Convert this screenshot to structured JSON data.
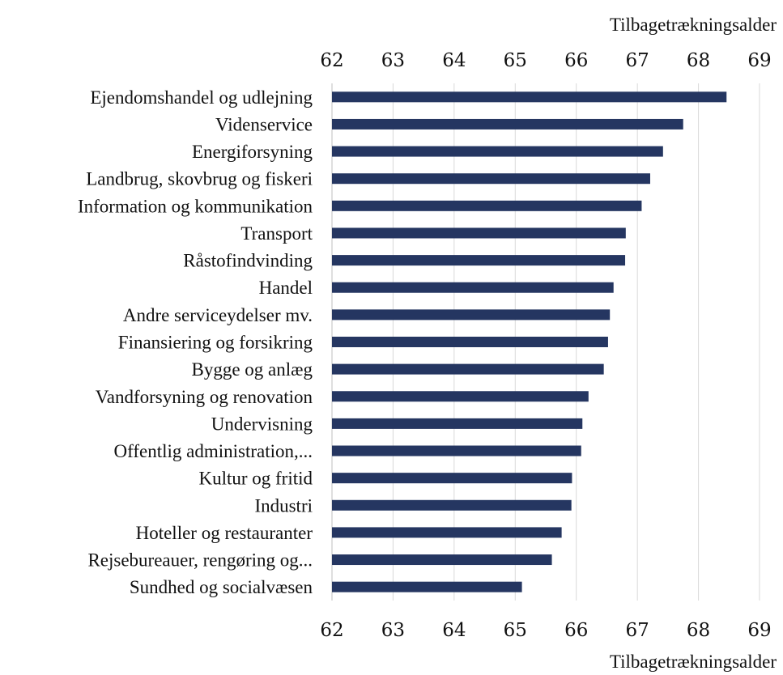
{
  "chart_data": {
    "type": "bar",
    "orientation": "horizontal",
    "categories": [
      "Ejendomshandel og udlejning",
      "Videnservice",
      "Energiforsyning",
      "Landbrug, skovbrug og fiskeri",
      "Information og kommunikation",
      "Transport",
      "Råstofindvinding",
      "Handel",
      "Andre serviceydelser  mv.",
      "Finansiering og forsikring",
      "Bygge og anlæg",
      "Vandforsyning og renovation",
      "Undervisning",
      "Offentlig administration,...",
      "Kultur og fritid",
      "Industri",
      "Hoteller og restauranter",
      "Rejsebureauer, rengøring og...",
      "Sundhed og socialvæsen"
    ],
    "values": [
      68.46,
      67.75,
      67.42,
      67.21,
      67.07,
      66.81,
      66.8,
      66.61,
      66.55,
      66.52,
      66.45,
      66.2,
      66.1,
      66.08,
      65.93,
      65.92,
      65.76,
      65.6,
      65.11
    ],
    "xlim": [
      62,
      69
    ],
    "xticks": [
      "62",
      "63",
      "64",
      "65",
      "66",
      "67",
      "68",
      "69"
    ],
    "xlabel_top": "Tilbagetrækningsalder",
    "xlabel_bottom": "Tilbagetrækningsalder",
    "bar_color": "#253661",
    "grid": true,
    "legend": "none"
  }
}
